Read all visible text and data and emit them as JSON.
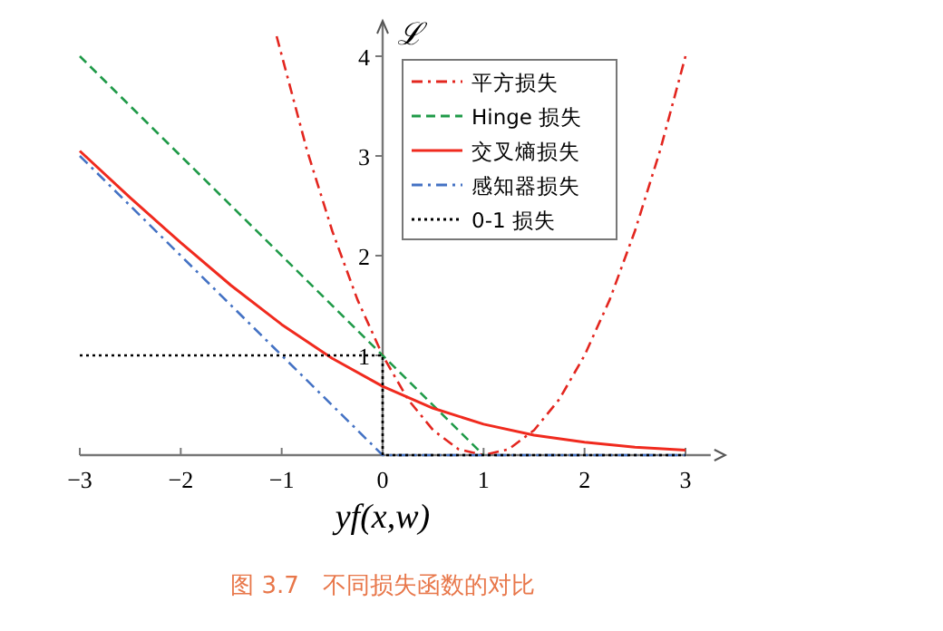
{
  "chart_data": {
    "type": "line",
    "xlabel": "yf(x,w)",
    "ylabel": "ℒ",
    "xlim": [
      -3,
      3.25
    ],
    "xticks": [
      -3,
      -2,
      -1,
      0,
      1,
      2,
      3
    ],
    "ylim": [
      0,
      4.3
    ],
    "yticks": [
      1,
      2,
      3,
      4
    ],
    "legend": "top right",
    "grid": false,
    "marker": "none",
    "annotations": [
      "图 3.7　不同损失函数的对比"
    ],
    "series": [
      {
        "name": "平方损失",
        "color": "#e3261f",
        "line_style": "dashdot",
        "x": [
          -1.05,
          -0.75,
          -0.5,
          -0.25,
          0,
          0.25,
          0.5,
          0.75,
          1,
          1.25,
          1.5,
          1.75,
          2,
          2.25,
          2.5,
          2.75,
          3
        ],
        "values": [
          4.2,
          3.06,
          2.25,
          1.56,
          1,
          0.56,
          0.25,
          0.06,
          0,
          0.06,
          0.25,
          0.56,
          1,
          1.56,
          2.25,
          3.06,
          4
        ]
      },
      {
        "name": "Hinge 损失",
        "color": "#1f9a48",
        "line_style": "dashed",
        "x": [
          -3,
          1
        ],
        "values": [
          4,
          0
        ]
      },
      {
        "name": "交叉熵损失",
        "color": "#f02a1e",
        "line_style": "solid",
        "x": [
          -3,
          -2.5,
          -2,
          -1.5,
          -1,
          -0.5,
          0,
          0.5,
          1,
          1.5,
          2,
          2.5,
          3
        ],
        "values": [
          3.05,
          2.58,
          2.13,
          1.7,
          1.31,
          0.97,
          0.69,
          0.47,
          0.31,
          0.2,
          0.13,
          0.08,
          0.05
        ]
      },
      {
        "name": "感知器损失",
        "color": "#4472c4",
        "line_style": "dashdot",
        "x": [
          -3,
          0,
          3
        ],
        "values": [
          3,
          0,
          0
        ]
      },
      {
        "name": "0-1 损失",
        "color": "#000000",
        "line_style": "dotted",
        "type": "step",
        "x": [
          -3,
          0,
          3
        ],
        "values": [
          1,
          0,
          0
        ]
      }
    ]
  }
}
